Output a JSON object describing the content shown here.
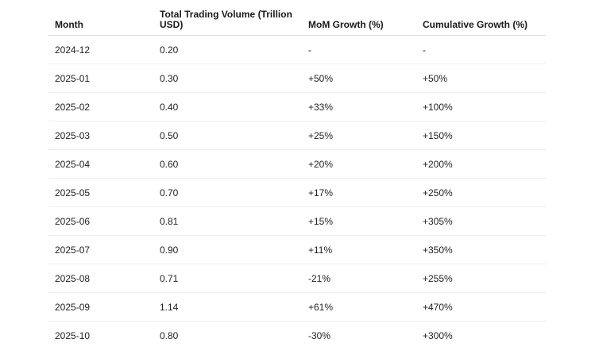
{
  "table": {
    "headers": [
      "Month",
      "Total Trading Volume (Trillion USD)",
      "MoM Growth (%)",
      "Cumulative Growth (%)"
    ],
    "rows": [
      [
        "2024-12",
        "0.20",
        "-",
        "-"
      ],
      [
        "2025-01",
        "0.30",
        "+50%",
        "+50%"
      ],
      [
        "2025-02",
        "0.40",
        "+33%",
        "+100%"
      ],
      [
        "2025-03",
        "0.50",
        "+25%",
        "+150%"
      ],
      [
        "2025-04",
        "0.60",
        "+20%",
        "+200%"
      ],
      [
        "2025-05",
        "0.70",
        "+17%",
        "+250%"
      ],
      [
        "2025-06",
        "0.81",
        "+15%",
        "+305%"
      ],
      [
        "2025-07",
        "0.90",
        "+11%",
        "+350%"
      ],
      [
        "2025-08",
        "0.71",
        "-21%",
        "+255%"
      ],
      [
        "2025-09",
        "1.14",
        "+61%",
        "+470%"
      ],
      [
        "2025-10",
        "0.80",
        "-30%",
        "+300%"
      ]
    ]
  }
}
